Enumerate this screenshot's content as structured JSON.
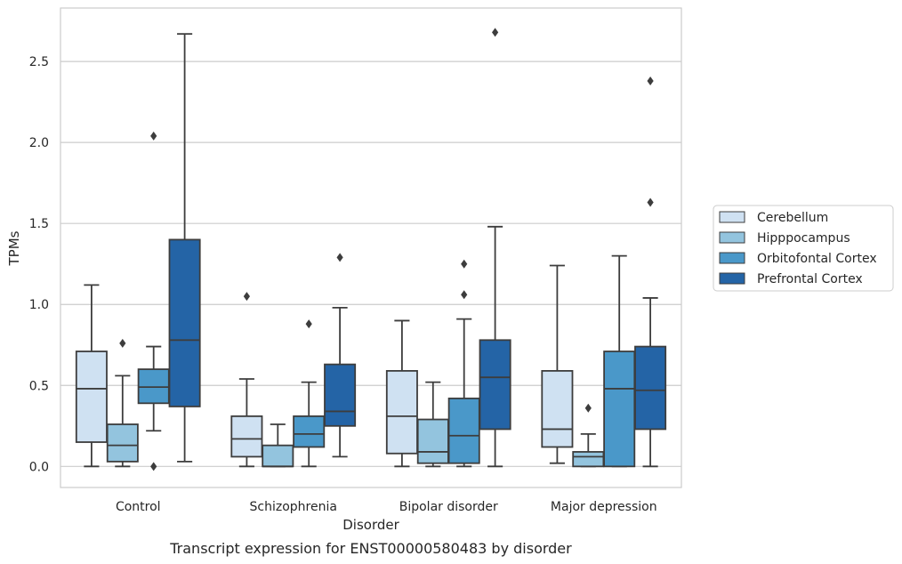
{
  "chart_data": {
    "type": "box",
    "categories": [
      "Control",
      "Schizophrenia",
      "Bipolar disorder",
      "Major depression"
    ],
    "xlabel": "Disorder",
    "ylabel": "TPMs",
    "caption": "Transcript expression for ENST00000580483 by disorder",
    "ylim": [
      -0.13,
      2.83
    ],
    "yticks": [
      0.0,
      0.5,
      1.0,
      1.5,
      2.0,
      2.5
    ],
    "ytick_labels": [
      "0.0",
      "0.5",
      "1.0",
      "1.5",
      "2.0",
      "2.5"
    ],
    "grid": "horizontal",
    "legend_position": "right",
    "series": [
      {
        "name": "Cerebellum",
        "color": "#cfe1f2",
        "boxes": [
          {
            "whislo": 0.0,
            "q1": 0.15,
            "med": 0.48,
            "q3": 0.71,
            "whishi": 1.12,
            "fliers": []
          },
          {
            "whislo": 0.0,
            "q1": 0.06,
            "med": 0.17,
            "q3": 0.31,
            "whishi": 0.54,
            "fliers": [
              1.05
            ]
          },
          {
            "whislo": 0.0,
            "q1": 0.08,
            "med": 0.31,
            "q3": 0.59,
            "whishi": 0.9,
            "fliers": []
          },
          {
            "whislo": 0.02,
            "q1": 0.12,
            "med": 0.23,
            "q3": 0.59,
            "whishi": 1.24,
            "fliers": []
          }
        ]
      },
      {
        "name": "Hipppocampus",
        "color": "#93c4de",
        "boxes": [
          {
            "whislo": 0.0,
            "q1": 0.03,
            "med": 0.13,
            "q3": 0.26,
            "whishi": 0.56,
            "fliers": [
              0.76
            ]
          },
          {
            "whislo": 0.0,
            "q1": 0.0,
            "med": 0.0,
            "q3": 0.13,
            "whishi": 0.26,
            "fliers": []
          },
          {
            "whislo": 0.0,
            "q1": 0.02,
            "med": 0.09,
            "q3": 0.29,
            "whishi": 0.52,
            "fliers": []
          },
          {
            "whislo": 0.0,
            "q1": 0.0,
            "med": 0.06,
            "q3": 0.09,
            "whishi": 0.2,
            "fliers": [
              0.36
            ]
          }
        ]
      },
      {
        "name": "Orbitofontal Cortex",
        "color": "#4a98c9",
        "boxes": [
          {
            "whislo": 0.22,
            "q1": 0.39,
            "med": 0.49,
            "q3": 0.6,
            "whishi": 0.74,
            "fliers": [
              2.04,
              0.0
            ]
          },
          {
            "whislo": 0.0,
            "q1": 0.12,
            "med": 0.2,
            "q3": 0.31,
            "whishi": 0.52,
            "fliers": [
              0.88
            ]
          },
          {
            "whislo": 0.0,
            "q1": 0.02,
            "med": 0.19,
            "q3": 0.42,
            "whishi": 0.91,
            "fliers": [
              1.06,
              1.25
            ]
          },
          {
            "whislo": 0.0,
            "q1": 0.0,
            "med": 0.48,
            "q3": 0.71,
            "whishi": 1.3,
            "fliers": []
          }
        ]
      },
      {
        "name": "Prefrontal Cortex",
        "color": "#2464a6",
        "boxes": [
          {
            "whislo": 0.03,
            "q1": 0.37,
            "med": 0.78,
            "q3": 1.4,
            "whishi": 2.67,
            "fliers": []
          },
          {
            "whislo": 0.06,
            "q1": 0.25,
            "med": 0.34,
            "q3": 0.63,
            "whishi": 0.98,
            "fliers": [
              1.29
            ]
          },
          {
            "whislo": 0.0,
            "q1": 0.23,
            "med": 0.55,
            "q3": 0.78,
            "whishi": 1.48,
            "fliers": [
              2.68
            ]
          },
          {
            "whislo": 0.0,
            "q1": 0.23,
            "med": 0.47,
            "q3": 0.74,
            "whishi": 1.04,
            "fliers": [
              1.63,
              2.38
            ]
          }
        ]
      }
    ]
  }
}
